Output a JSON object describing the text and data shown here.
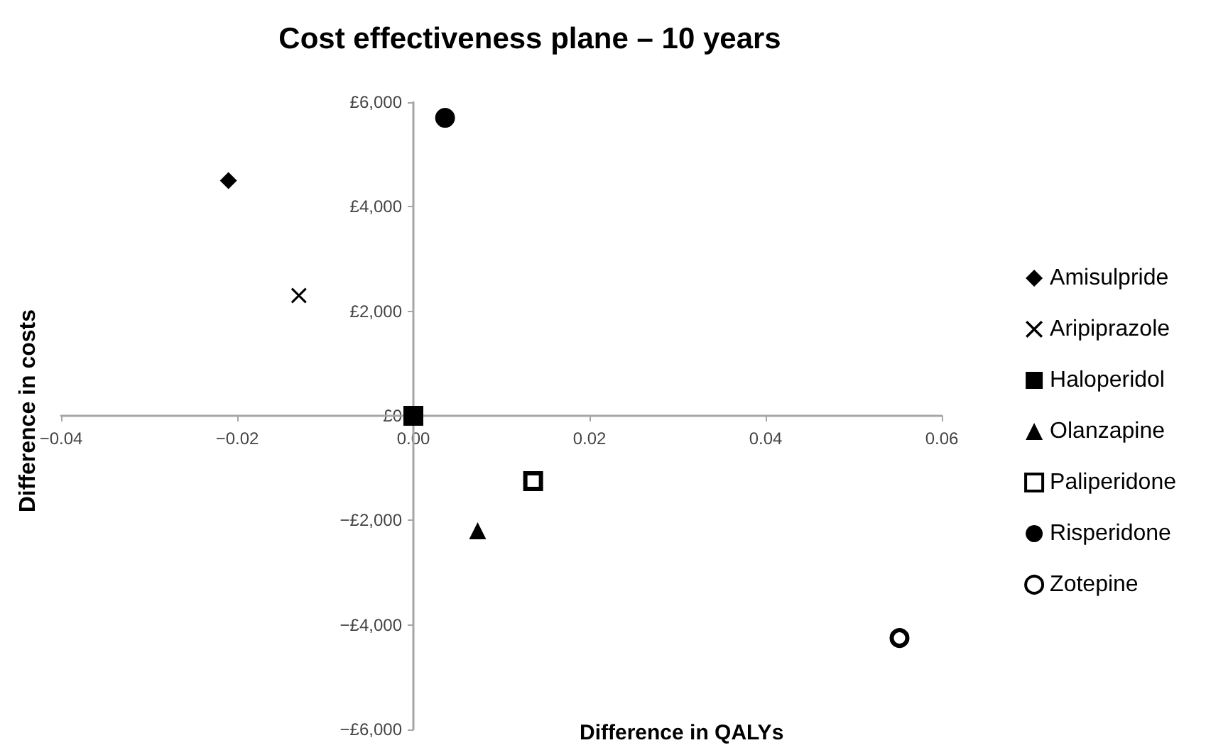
{
  "chart_data": {
    "type": "scatter",
    "title": "Cost effectiveness plane – 10 years",
    "xlabel": "Difference in QALYs",
    "ylabel": "Difference in costs",
    "xlim": [
      -0.04,
      0.06
    ],
    "xticks": [
      {
        "value": -0.04,
        "label": "−0.04"
      },
      {
        "value": -0.02,
        "label": "−0.02"
      },
      {
        "value": 0,
        "label": "0.00"
      },
      {
        "value": 0.02,
        "label": "0.02"
      },
      {
        "value": 0.04,
        "label": "0.04"
      },
      {
        "value": 0.06,
        "label": "0.06"
      }
    ],
    "ylim": [
      -6000,
      6000
    ],
    "yticks": [
      {
        "value": -6000,
        "label": "−£6,000"
      },
      {
        "value": -4000,
        "label": "−£4,000"
      },
      {
        "value": -2000,
        "label": "−£2,000"
      },
      {
        "value": 0,
        "label": "£0"
      },
      {
        "value": 2000,
        "label": "£2,000"
      },
      {
        "value": 4000,
        "label": "£4,000"
      },
      {
        "value": 6000,
        "label": "£6,000"
      }
    ],
    "grid": false,
    "legend": "right",
    "series": [
      {
        "name": "Amisulpride",
        "color": "#000000",
        "marker": "diamond",
        "x": [
          -0.021
        ],
        "values": [
          4500
        ]
      },
      {
        "name": "Aripiprazole",
        "color": "#000000",
        "marker": "cross",
        "x": [
          -0.013
        ],
        "values": [
          2300
        ]
      },
      {
        "name": "Haloperidol",
        "color": "#000000",
        "marker": "square",
        "x": [
          0
        ],
        "values": [
          0
        ]
      },
      {
        "name": "Olanzapine",
        "color": "#000000",
        "marker": "triangle",
        "x": [
          0.0073
        ],
        "values": [
          -2200
        ]
      },
      {
        "name": "Paliperidone",
        "color": "#ffffff",
        "marker": "square",
        "x": [
          0.0136
        ],
        "values": [
          -1250
        ]
      },
      {
        "name": "Risperidone",
        "color": "#000000",
        "marker": "circle",
        "x": [
          0.0036
        ],
        "values": [
          5700
        ]
      },
      {
        "name": "Zotepine",
        "color": "#ffffff",
        "marker": "circle",
        "x": [
          0.0552
        ],
        "values": [
          -4250
        ]
      }
    ]
  }
}
